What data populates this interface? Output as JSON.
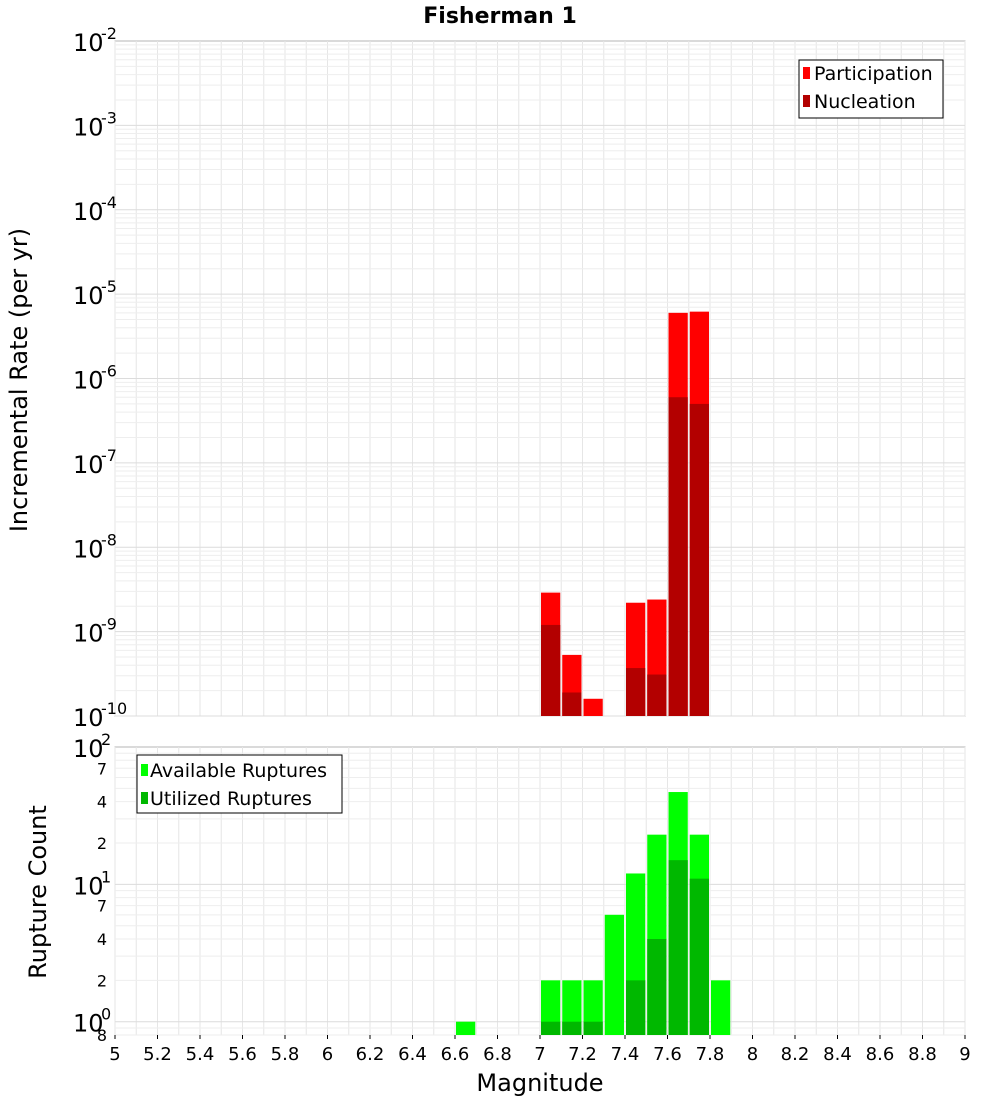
{
  "chart_data": [
    {
      "type": "bar",
      "title": "Fisherman 1",
      "xlabel": "",
      "ylabel": "Incremental Rate (per yr)",
      "xlim": [
        5,
        9
      ],
      "ylim": [
        1e-10,
        0.01
      ],
      "yscale": "log",
      "grid": true,
      "legend_position": "top-right",
      "bar_width": 0.1,
      "series": [
        {
          "name": "Participation",
          "color": "#ff0000",
          "x": [
            7.05,
            7.15,
            7.25,
            7.35,
            7.45,
            7.55,
            7.65,
            7.75
          ],
          "values": [
            2.9e-09,
            5.3e-10,
            1.6e-10,
            null,
            2.2e-09,
            2.4e-09,
            6e-06,
            6.2e-06
          ]
        },
        {
          "name": "Nucleation",
          "color": "#b30000",
          "x": [
            7.05,
            7.15,
            7.25,
            7.35,
            7.45,
            7.55,
            7.65,
            7.75
          ],
          "values": [
            1.2e-09,
            1.9e-10,
            null,
            null,
            3.7e-10,
            3.1e-10,
            6e-07,
            5e-07
          ]
        }
      ]
    },
    {
      "type": "bar",
      "title": "",
      "xlabel": "Magnitude",
      "ylabel": "Rupture Count",
      "xlim": [
        5,
        9
      ],
      "ylim": [
        0.8,
        100
      ],
      "yscale": "log",
      "grid": true,
      "legend_position": "top-left",
      "bar_width": 0.1,
      "xticks": [
        "5",
        "5.2",
        "5.4",
        "5.6",
        "5.8",
        "6",
        "6.2",
        "6.4",
        "6.6",
        "6.8",
        "7",
        "7.2",
        "7.4",
        "7.6",
        "7.8",
        "8",
        "8.2",
        "8.4",
        "8.6",
        "8.8",
        "9"
      ],
      "series": [
        {
          "name": "Available Ruptures",
          "color": "#00ff00",
          "x": [
            6.65,
            7.05,
            7.15,
            7.25,
            7.35,
            7.45,
            7.55,
            7.65,
            7.75,
            7.85
          ],
          "values": [
            1,
            2,
            2,
            2,
            6,
            12,
            23,
            47,
            23,
            2
          ]
        },
        {
          "name": "Utilized Ruptures",
          "color": "#00b800",
          "x": [
            7.05,
            7.15,
            7.25,
            7.45,
            7.55,
            7.65,
            7.75
          ],
          "values": [
            1,
            1,
            1,
            2,
            4,
            15,
            11
          ]
        }
      ]
    }
  ],
  "top_y_ticks": [
    {
      "base": "10",
      "exp": "-2"
    },
    {
      "base": "10",
      "exp": "-3"
    },
    {
      "base": "10",
      "exp": "-4"
    },
    {
      "base": "10",
      "exp": "-5"
    },
    {
      "base": "10",
      "exp": "-6"
    },
    {
      "base": "10",
      "exp": "-7"
    },
    {
      "base": "10",
      "exp": "-8"
    },
    {
      "base": "10",
      "exp": "-9"
    },
    {
      "base": "10",
      "exp": "-10"
    }
  ],
  "bottom_y_ticks": {
    "major": [
      {
        "base": "10",
        "exp": "2"
      },
      {
        "base": "10",
        "exp": "1"
      },
      {
        "base": "10",
        "exp": "0"
      }
    ],
    "minor": [
      "7",
      "4",
      "2",
      "7",
      "4",
      "2",
      "8"
    ]
  }
}
